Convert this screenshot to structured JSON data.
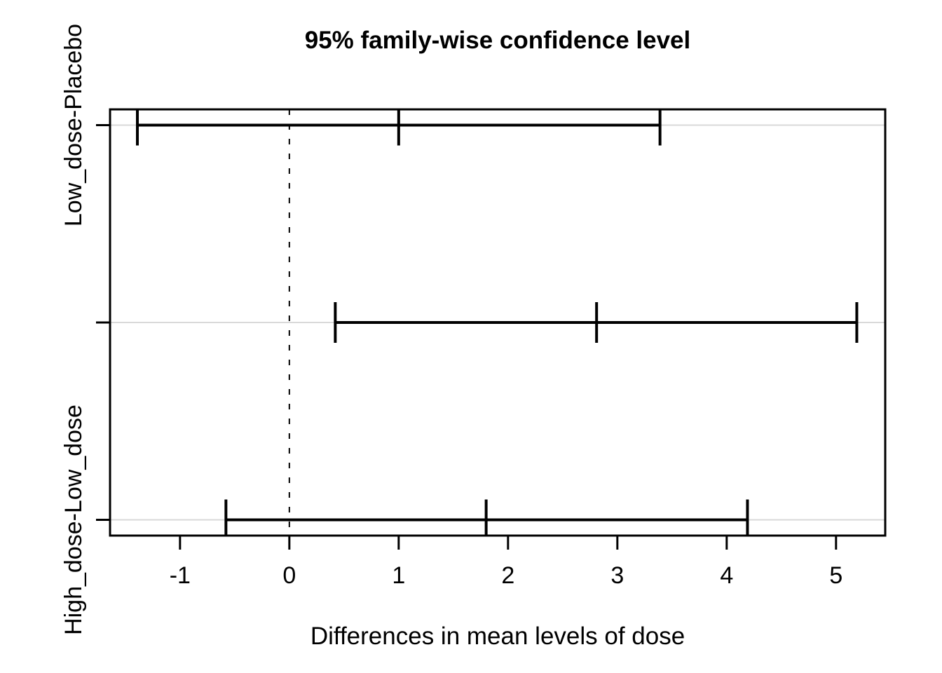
{
  "title": "95% family-wise confidence level",
  "xlabel": "Differences in mean levels of dose",
  "colors": {
    "line": "#000000",
    "row_line": "#d9d9d9",
    "background": "#ffffff"
  },
  "chart_data": {
    "type": "ci-interval",
    "title": "95% family-wise confidence level",
    "xlabel": "Differences in mean levels of dose",
    "confidence_level": "95%",
    "x_ticks": [
      -1,
      0,
      1,
      2,
      3,
      4,
      5
    ],
    "xlim": [
      -1.64,
      5.45
    ],
    "ylim": [
      0.92,
      3.08
    ],
    "grid": "light gray horizontal line at each comparison row",
    "legend_position": "none",
    "zero_reference_line": {
      "x": 0,
      "style": "dashed"
    },
    "comparisons": [
      {
        "label": "Low_dose-Placebo",
        "y": 3,
        "diff": 1.0,
        "lwr": -1.39,
        "upr": 3.39
      },
      {
        "label": "",
        "y": 2,
        "diff": 2.81,
        "lwr": 0.42,
        "upr": 5.19
      },
      {
        "label": "High_dose-Low_dose",
        "y": 1,
        "diff": 1.8,
        "lwr": -0.58,
        "upr": 4.19
      }
    ]
  }
}
